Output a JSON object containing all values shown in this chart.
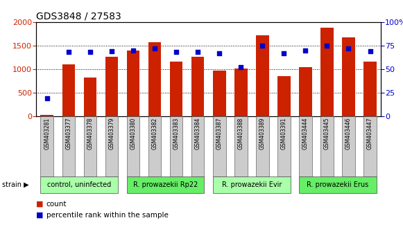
{
  "title": "GDS3848 / 27583",
  "samples": [
    "GSM403281",
    "GSM403377",
    "GSM403378",
    "GSM403379",
    "GSM403380",
    "GSM403382",
    "GSM403383",
    "GSM403384",
    "GSM403387",
    "GSM403388",
    "GSM403389",
    "GSM403391",
    "GSM403444",
    "GSM403445",
    "GSM403446",
    "GSM403447"
  ],
  "counts": [
    30,
    1100,
    820,
    1265,
    1390,
    1570,
    1160,
    1260,
    975,
    1020,
    1720,
    850,
    1040,
    1880,
    1670,
    1160
  ],
  "percentiles": [
    19,
    68,
    68,
    69,
    70,
    72,
    68,
    68,
    67,
    52,
    75,
    67,
    70,
    75,
    72,
    69
  ],
  "groups": [
    {
      "label": "control, uninfected",
      "start": 0,
      "end": 4,
      "color": "#aaffaa"
    },
    {
      "label": "R. prowazekii Rp22",
      "start": 4,
      "end": 8,
      "color": "#66ee66"
    },
    {
      "label": "R. prowazekii Evir",
      "start": 8,
      "end": 12,
      "color": "#aaffaa"
    },
    {
      "label": "R. prowazekii Erus",
      "start": 12,
      "end": 16,
      "color": "#66ee66"
    }
  ],
  "bar_color": "#cc2200",
  "dot_color": "#0000cc",
  "ylim_left": [
    0,
    2000
  ],
  "ylim_right": [
    0,
    100
  ],
  "yticks_left": [
    0,
    500,
    1000,
    1500,
    2000
  ],
  "yticks_right": [
    0,
    25,
    50,
    75,
    100
  ],
  "background_color": "#ffffff",
  "tick_label_color_left": "#cc2200",
  "tick_label_color_right": "#0000cc",
  "legend_items": [
    {
      "label": "count",
      "color": "#cc2200"
    },
    {
      "label": "percentile rank within the sample",
      "color": "#0000cc"
    }
  ],
  "strain_label": "strain",
  "title_fontsize": 10,
  "bar_width": 0.6,
  "xlim": [
    -0.5,
    15.5
  ]
}
